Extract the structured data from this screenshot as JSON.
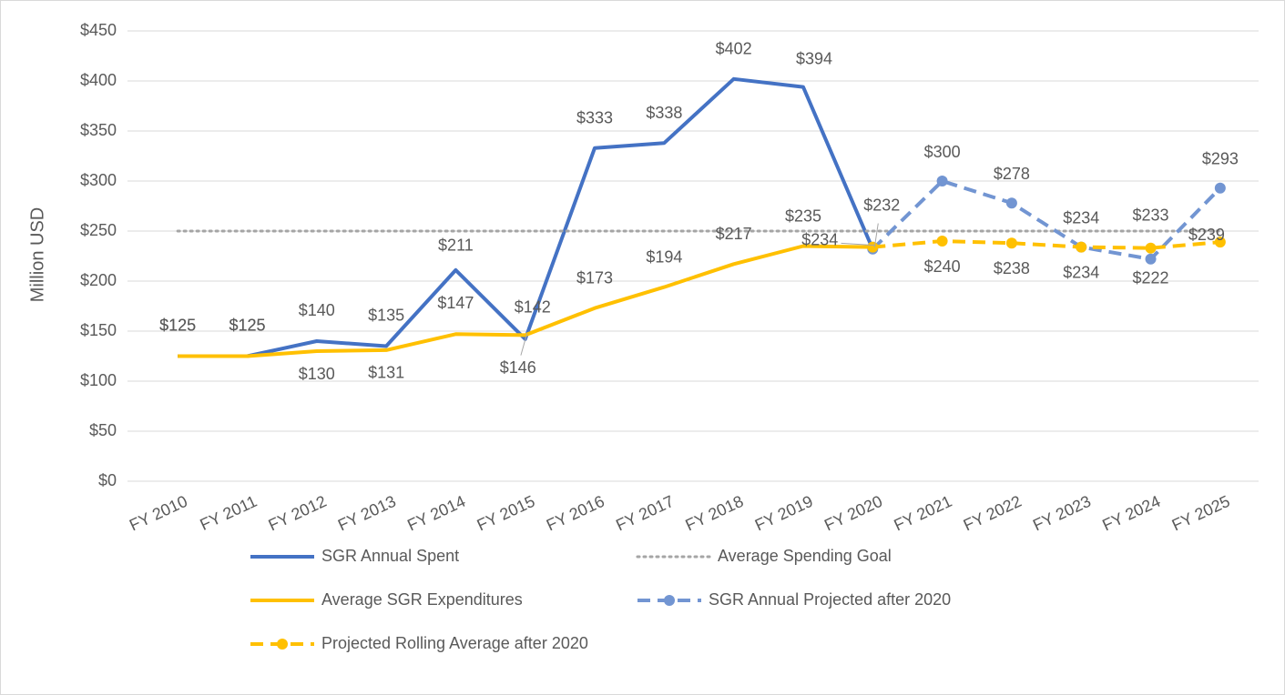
{
  "chart_data": {
    "type": "line",
    "y_label": "Million USD",
    "categories": [
      "FY 2010",
      "FY 2011",
      "FY 2012",
      "FY 2013",
      "FY 2014",
      "FY 2015",
      "FY 2016",
      "FY 2017",
      "FY 2018",
      "FY 2019",
      "FY 2020",
      "FY 2021",
      "FY 2022",
      "FY 2023",
      "FY 2024",
      "FY 2025"
    ],
    "ylim": [
      0,
      450
    ],
    "yticks": [
      {
        "value": 0,
        "label": "$0"
      },
      {
        "value": 50,
        "label": "$50"
      },
      {
        "value": 100,
        "label": "$100"
      },
      {
        "value": 150,
        "label": "$150"
      },
      {
        "value": 200,
        "label": "$200"
      },
      {
        "value": 250,
        "label": "$250"
      },
      {
        "value": 300,
        "label": "$300"
      },
      {
        "value": 350,
        "label": "$350"
      },
      {
        "value": 400,
        "label": "$400"
      },
      {
        "value": 450,
        "label": "$450"
      }
    ],
    "grid": true,
    "legend": "bottom",
    "series": [
      {
        "name": "SGR Annual Spent",
        "color": "#4472c4",
        "style": "solid",
        "markers": false,
        "values": [
          125,
          125,
          140,
          135,
          211,
          142,
          333,
          338,
          402,
          394,
          232,
          null,
          null,
          null,
          null,
          null
        ],
        "value_labels": [
          "$125",
          "$125",
          "$140",
          "$135",
          "$211",
          "$142",
          "$333",
          "$338",
          "$402",
          "$394",
          "$232",
          null,
          null,
          null,
          null,
          null
        ]
      },
      {
        "name": "Average Spending Goal",
        "color": "#a5a5a5",
        "style": "dotted",
        "markers": false,
        "values": [
          250,
          250,
          250,
          250,
          250,
          250,
          250,
          250,
          250,
          250,
          250,
          250,
          250,
          250,
          250,
          250
        ]
      },
      {
        "name": "Average SGR Expenditures",
        "color": "#ffc000",
        "style": "solid",
        "markers": false,
        "values": [
          125,
          125,
          130,
          131,
          147,
          146,
          173,
          194,
          217,
          235,
          234,
          null,
          null,
          null,
          null,
          null
        ],
        "value_labels": [
          "$125",
          "$125",
          "$130",
          "$131",
          "$147",
          "$146",
          "$173",
          "$194",
          "$217",
          "$235",
          "$234",
          null,
          null,
          null,
          null,
          null
        ]
      },
      {
        "name": "SGR Annual Projected after 2020",
        "color": "#7295d2",
        "style": "dashed",
        "markers": true,
        "values": [
          null,
          null,
          null,
          null,
          null,
          null,
          null,
          null,
          null,
          null,
          232,
          300,
          278,
          234,
          222,
          293
        ],
        "value_labels": [
          null,
          null,
          null,
          null,
          null,
          null,
          null,
          null,
          null,
          null,
          null,
          "$300",
          "$278",
          "$234",
          "$222",
          "$293"
        ]
      },
      {
        "name": "Projected Rolling Average after 2020",
        "color": "#ffc000",
        "style": "dashed",
        "markers": true,
        "values": [
          null,
          null,
          null,
          null,
          null,
          null,
          null,
          null,
          null,
          null,
          234,
          240,
          238,
          234,
          233,
          239
        ],
        "value_labels": [
          null,
          null,
          null,
          null,
          null,
          null,
          null,
          null,
          null,
          null,
          null,
          "$240",
          "$238",
          "$234",
          "$233",
          "$239"
        ]
      }
    ]
  }
}
